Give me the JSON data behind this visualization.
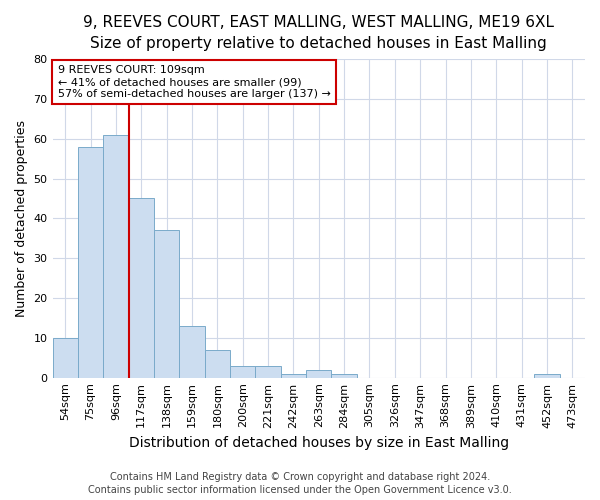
{
  "title_line1": "9, REEVES COURT, EAST MALLING, WEST MALLING, ME19 6XL",
  "title_line2": "Size of property relative to detached houses in East Malling",
  "xlabel": "Distribution of detached houses by size in East Malling",
  "ylabel": "Number of detached properties",
  "categories": [
    "54sqm",
    "75sqm",
    "96sqm",
    "117sqm",
    "138sqm",
    "159sqm",
    "180sqm",
    "200sqm",
    "221sqm",
    "242sqm",
    "263sqm",
    "284sqm",
    "305sqm",
    "326sqm",
    "347sqm",
    "368sqm",
    "389sqm",
    "410sqm",
    "431sqm",
    "452sqm",
    "473sqm"
  ],
  "values": [
    10,
    58,
    61,
    45,
    37,
    13,
    7,
    3,
    3,
    1,
    2,
    1,
    0,
    0,
    0,
    0,
    0,
    0,
    0,
    1,
    0
  ],
  "bar_color": "#ccddf0",
  "bar_edge_color": "#7aaaca",
  "vline_x": 2.5,
  "vline_color": "#cc0000",
  "annotation_text": "9 REEVES COURT: 109sqm\n← 41% of detached houses are smaller (99)\n57% of semi-detached houses are larger (137) →",
  "annotation_box_facecolor": "#ffffff",
  "annotation_box_edgecolor": "#cc0000",
  "ylim": [
    0,
    80
  ],
  "yticks": [
    0,
    10,
    20,
    30,
    40,
    50,
    60,
    70,
    80
  ],
  "footer_line1": "Contains HM Land Registry data © Crown copyright and database right 2024.",
  "footer_line2": "Contains public sector information licensed under the Open Government Licence v3.0.",
  "bg_color": "#ffffff",
  "grid_color": "#d0d8e8",
  "title1_fontsize": 11,
  "title2_fontsize": 10,
  "xlabel_fontsize": 10,
  "ylabel_fontsize": 9,
  "tick_fontsize": 8,
  "annot_fontsize": 8,
  "footer_fontsize": 7
}
